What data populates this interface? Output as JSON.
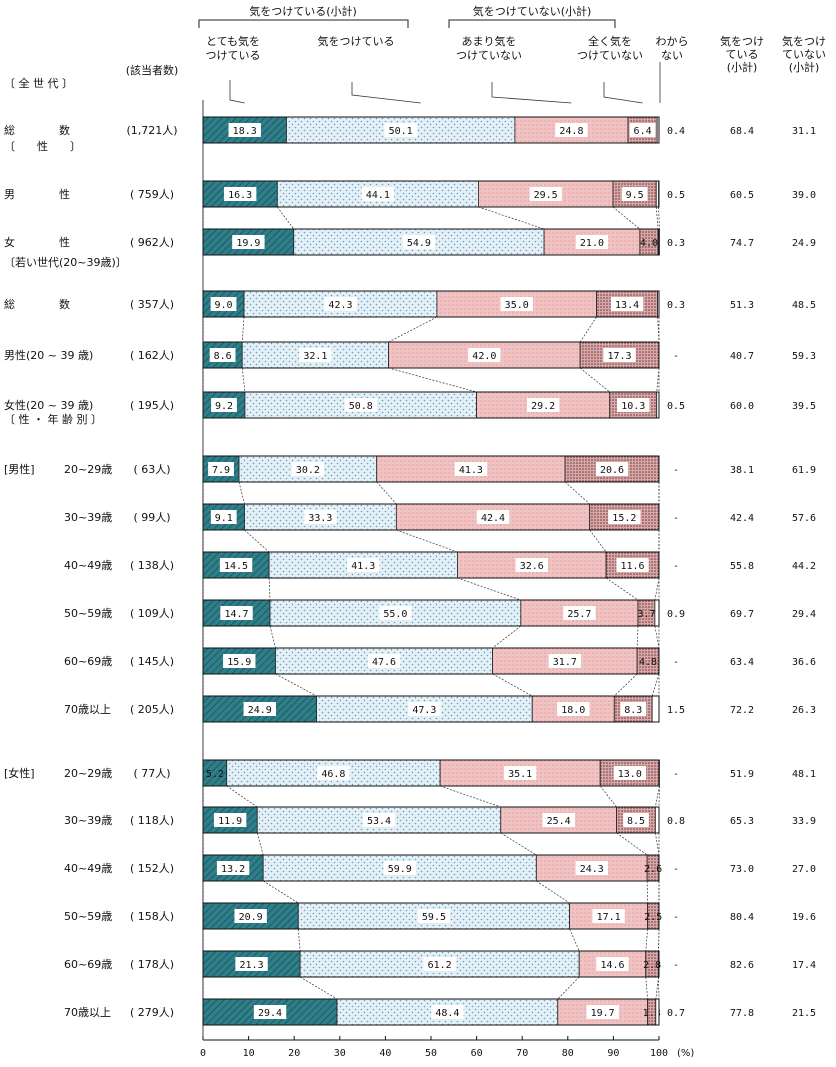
{
  "chart_data": {
    "type": "bar",
    "stacked": true,
    "orientation": "horizontal",
    "xlim": [
      0,
      100
    ],
    "x_ticks": [
      "0",
      "10",
      "20",
      "30",
      "40",
      "50",
      "60",
      "70",
      "80",
      "90",
      "100"
    ],
    "x_unit": "(%)",
    "count_header": "(該当者数)",
    "group_headers": {
      "taking_care": "気をつけている(小計)",
      "not_taking_care": "気をつけていない(小計)"
    },
    "series": [
      {
        "name": "とても気を\nつけている",
        "key": "very",
        "color": "#2f7f8a"
      },
      {
        "name": "気をつけている",
        "key": "some",
        "color": "#dcebf4"
      },
      {
        "name": "あまり気を\nつけていない",
        "key": "notmuch",
        "color": "#f2c4c4"
      },
      {
        "name": "全く気を\nつけていない",
        "key": "notatall",
        "color": "#c99a9a"
      },
      {
        "name": "わから\nない",
        "key": "dk",
        "color": "#ffffff"
      }
    ],
    "subtotal_headers": [
      "気をつけ\nている\n(小計)",
      "気をつけ\nていない\n(小計)"
    ],
    "sections": [
      {
        "label": "〔 全 世 代 〕",
        "rows": [
          {
            "group": "",
            "label": "総　　　　数",
            "count": "(1,721人)",
            "values": [
              18.3,
              50.1,
              24.8,
              6.4,
              0.4
            ],
            "subtotals": [
              "68.4",
              "31.1"
            ]
          }
        ]
      },
      {
        "label": "〔　　性　　〕",
        "rows": [
          {
            "group": "",
            "label": "男　　　　性",
            "count": "( 759人)",
            "values": [
              16.3,
              44.1,
              29.5,
              9.5,
              0.5
            ],
            "subtotals": [
              "60.5",
              "39.0"
            ]
          },
          {
            "group": "",
            "label": "女　　　　性",
            "count": "( 962人)",
            "values": [
              19.9,
              54.9,
              21.0,
              4.0,
              0.3
            ],
            "subtotals": [
              "74.7",
              "24.9"
            ]
          }
        ]
      },
      {
        "label": "〔若い世代(20~39歳)〕",
        "rows": [
          {
            "group": "",
            "label": "総　　　　数",
            "count": "( 357人)",
            "values": [
              9.0,
              42.3,
              35.0,
              13.4,
              0.3
            ],
            "subtotals": [
              "51.3",
              "48.5"
            ]
          },
          {
            "group": "",
            "label": "男性(20 ~ 39 歳)",
            "count": "( 162人)",
            "values": [
              8.6,
              32.1,
              42.0,
              17.3,
              0
            ],
            "subtotals": [
              "40.7",
              "59.3"
            ]
          },
          {
            "group": "",
            "label": "女性(20 ~ 39 歳)",
            "count": "( 195人)",
            "values": [
              9.2,
              50.8,
              29.2,
              10.3,
              0.5
            ],
            "subtotals": [
              "60.0",
              "39.5"
            ]
          }
        ]
      },
      {
        "label": "〔 性 ・ 年 齢 別 〕",
        "rows": [
          {
            "group": "[男性]",
            "label": "20~29歳",
            "count": "(  63人)",
            "values": [
              7.9,
              30.2,
              41.3,
              20.6,
              0
            ],
            "subtotals": [
              "38.1",
              "61.9"
            ]
          },
          {
            "group": "",
            "label": "30~39歳",
            "count": "(  99人)",
            "values": [
              9.1,
              33.3,
              42.4,
              15.2,
              0
            ],
            "subtotals": [
              "42.4",
              "57.6"
            ]
          },
          {
            "group": "",
            "label": "40~49歳",
            "count": "( 138人)",
            "values": [
              14.5,
              41.3,
              32.6,
              11.6,
              0
            ],
            "subtotals": [
              "55.8",
              "44.2"
            ]
          },
          {
            "group": "",
            "label": "50~59歳",
            "count": "( 109人)",
            "values": [
              14.7,
              55.0,
              25.7,
              3.7,
              0.9
            ],
            "subtotals": [
              "69.7",
              "29.4"
            ]
          },
          {
            "group": "",
            "label": "60~69歳",
            "count": "( 145人)",
            "values": [
              15.9,
              47.6,
              31.7,
              4.8,
              0
            ],
            "subtotals": [
              "63.4",
              "36.6"
            ]
          },
          {
            "group": "",
            "label": "70歳以上",
            "count": "( 205人)",
            "values": [
              24.9,
              47.3,
              18.0,
              8.3,
              1.5
            ],
            "subtotals": [
              "72.2",
              "26.3"
            ]
          },
          {
            "group": "[女性]",
            "label": "20~29歳",
            "count": "(  77人)",
            "values": [
              5.2,
              46.8,
              35.1,
              13.0,
              0
            ],
            "subtotals": [
              "51.9",
              "48.1"
            ]
          },
          {
            "group": "",
            "label": "30~39歳",
            "count": "( 118人)",
            "values": [
              11.9,
              53.4,
              25.4,
              8.5,
              0.8
            ],
            "subtotals": [
              "65.3",
              "33.9"
            ]
          },
          {
            "group": "",
            "label": "40~49歳",
            "count": "( 152人)",
            "values": [
              13.2,
              59.9,
              24.3,
              2.6,
              0
            ],
            "subtotals": [
              "73.0",
              "27.0"
            ]
          },
          {
            "group": "",
            "label": "50~59歳",
            "count": "( 158人)",
            "values": [
              20.9,
              59.5,
              17.1,
              2.5,
              0
            ],
            "subtotals": [
              "80.4",
              "19.6"
            ]
          },
          {
            "group": "",
            "label": "60~69歳",
            "count": "( 178人)",
            "values": [
              21.3,
              61.2,
              14.6,
              2.8,
              0
            ],
            "subtotals": [
              "82.6",
              "17.4"
            ]
          },
          {
            "group": "",
            "label": "70歳以上",
            "count": "( 279人)",
            "values": [
              29.4,
              48.4,
              19.7,
              1.8,
              0.7
            ],
            "subtotals": [
              "77.8",
              "21.5"
            ]
          }
        ]
      }
    ]
  }
}
